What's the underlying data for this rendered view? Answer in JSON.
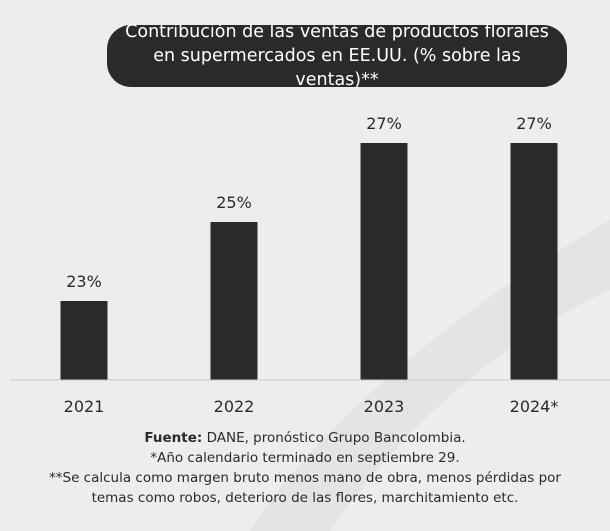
{
  "title": "Contribución de las ventas de productos florales en supermercados en EE.UU. (% sobre las ventas)**",
  "chart_data": {
    "type": "bar",
    "categories": [
      "2021",
      "2022",
      "2023",
      "2024*"
    ],
    "values": [
      23,
      25,
      27,
      27
    ],
    "value_labels": [
      "23%",
      "25%",
      "27%",
      "27%"
    ],
    "ylim": [
      0,
      30
    ],
    "grid": false,
    "bar_color": "#2b2a29"
  },
  "footer": {
    "source_label": "Fuente:",
    "source_text": " DANE, pronóstico Grupo Bancolombia.",
    "note1": "*Año calendario terminado en septiembre 29.",
    "note2": "**Se calcula como margen bruto menos mano de obra, menos pérdidas por temas como robos, deterioro de las flores, marchitamiento etc."
  },
  "colors": {
    "background": "#ededeb",
    "dark": "#2b2a29",
    "text_light": "#ffffff"
  }
}
